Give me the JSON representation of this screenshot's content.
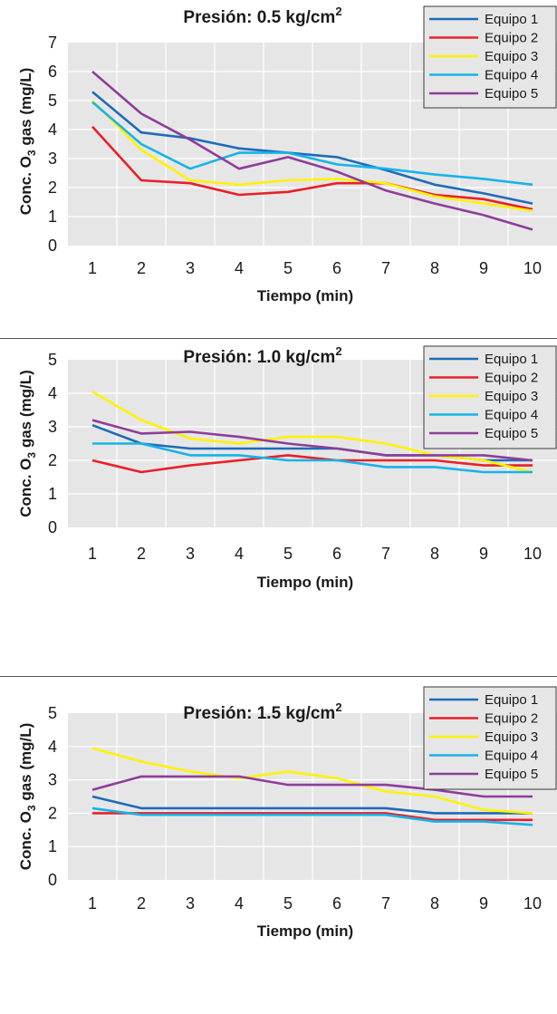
{
  "chart_data": [
    {
      "type": "line",
      "title": "Presión: 0.5 kg/cm",
      "title_superscript": "2",
      "xlabel": "Tiempo (min)",
      "ylabel": "Conc. O3 gas (mg/L)",
      "x": [
        1,
        2,
        3,
        4,
        5,
        6,
        7,
        8,
        9,
        10
      ],
      "xlim": [
        0.5,
        10.5
      ],
      "ylim": [
        0,
        7
      ],
      "yticks": [
        0,
        1,
        2,
        3,
        4,
        5,
        6,
        7
      ],
      "grid": true,
      "legend_position": "top-right",
      "series": [
        {
          "name": "Equipo 1",
          "color": "#1e6bb8",
          "values": [
            5.3,
            3.9,
            3.7,
            3.35,
            3.2,
            3.05,
            2.6,
            2.1,
            1.8,
            1.45
          ]
        },
        {
          "name": "Equipo 2",
          "color": "#e8202a",
          "values": [
            4.1,
            2.25,
            2.15,
            1.75,
            1.85,
            2.15,
            2.15,
            1.75,
            1.6,
            1.25
          ]
        },
        {
          "name": "Equipo 3",
          "color": "#fff200",
          "values": [
            5.0,
            3.3,
            2.25,
            2.1,
            2.25,
            2.3,
            2.15,
            1.7,
            1.45,
            1.2
          ]
        },
        {
          "name": "Equipo 4",
          "color": "#16b3e8",
          "values": [
            4.95,
            3.5,
            2.65,
            3.2,
            3.2,
            2.8,
            2.65,
            2.45,
            2.3,
            2.1
          ]
        },
        {
          "name": "Equipo 5",
          "color": "#8e3d99",
          "values": [
            6.0,
            4.55,
            3.65,
            2.65,
            3.05,
            2.55,
            1.9,
            1.45,
            1.05,
            0.55
          ]
        }
      ]
    },
    {
      "type": "line",
      "title": "Presión: 1.0 kg/cm",
      "title_superscript": "2",
      "xlabel": "Tiempo (min)",
      "ylabel": "Conc. O3 gas (mg/L)",
      "x": [
        1,
        2,
        3,
        4,
        5,
        6,
        7,
        8,
        9,
        10
      ],
      "xlim": [
        0.5,
        10.5
      ],
      "ylim": [
        0,
        5
      ],
      "yticks": [
        0,
        1,
        2,
        3,
        4,
        5
      ],
      "grid": true,
      "legend_position": "top-right",
      "series": [
        {
          "name": "Equipo 1",
          "color": "#1e6bb8",
          "values": [
            3.05,
            2.5,
            2.35,
            2.35,
            2.35,
            2.35,
            2.15,
            2.15,
            2.0,
            2.0
          ]
        },
        {
          "name": "Equipo 2",
          "color": "#e8202a",
          "values": [
            2.0,
            1.65,
            1.85,
            2.0,
            2.15,
            2.0,
            2.0,
            2.0,
            1.85,
            1.85
          ]
        },
        {
          "name": "Equipo 3",
          "color": "#fff200",
          "values": [
            4.05,
            3.2,
            2.65,
            2.5,
            2.7,
            2.7,
            2.5,
            2.15,
            2.0,
            1.65
          ]
        },
        {
          "name": "Equipo 4",
          "color": "#16b3e8",
          "values": [
            2.5,
            2.5,
            2.15,
            2.15,
            2.0,
            2.0,
            1.8,
            1.8,
            1.65,
            1.65
          ]
        },
        {
          "name": "Equipo 5",
          "color": "#8e3d99",
          "values": [
            3.2,
            2.8,
            2.85,
            2.7,
            2.5,
            2.35,
            2.15,
            2.15,
            2.15,
            2.0
          ]
        }
      ]
    },
    {
      "type": "line",
      "title": "Presión: 1.5 kg/cm",
      "title_superscript": "2",
      "xlabel": "Tiempo (min)",
      "ylabel": "Conc. O3 gas (mg/L)",
      "x": [
        1,
        2,
        3,
        4,
        5,
        6,
        7,
        8,
        9,
        10
      ],
      "xlim": [
        0.5,
        10.5
      ],
      "ylim": [
        0,
        5
      ],
      "yticks": [
        0,
        1,
        2,
        3,
        4,
        5
      ],
      "grid": true,
      "legend_position": "top-right",
      "series": [
        {
          "name": "Equipo 1",
          "color": "#1e6bb8",
          "values": [
            2.5,
            2.15,
            2.15,
            2.15,
            2.15,
            2.15,
            2.15,
            2.0,
            2.0,
            2.0
          ]
        },
        {
          "name": "Equipo 2",
          "color": "#e8202a",
          "values": [
            2.0,
            2.0,
            2.0,
            2.0,
            2.0,
            2.0,
            2.0,
            1.8,
            1.8,
            1.8
          ]
        },
        {
          "name": "Equipo 3",
          "color": "#fff200",
          "values": [
            3.95,
            3.55,
            3.25,
            3.05,
            3.25,
            3.05,
            2.65,
            2.5,
            2.1,
            2.0
          ]
        },
        {
          "name": "Equipo 4",
          "color": "#16b3e8",
          "values": [
            2.15,
            1.95,
            1.95,
            1.95,
            1.95,
            1.95,
            1.95,
            1.75,
            1.75,
            1.65
          ]
        },
        {
          "name": "Equipo 5",
          "color": "#8e3d99",
          "values": [
            2.7,
            3.1,
            3.1,
            3.1,
            2.85,
            2.85,
            2.85,
            2.7,
            2.5,
            2.5
          ]
        }
      ]
    }
  ]
}
